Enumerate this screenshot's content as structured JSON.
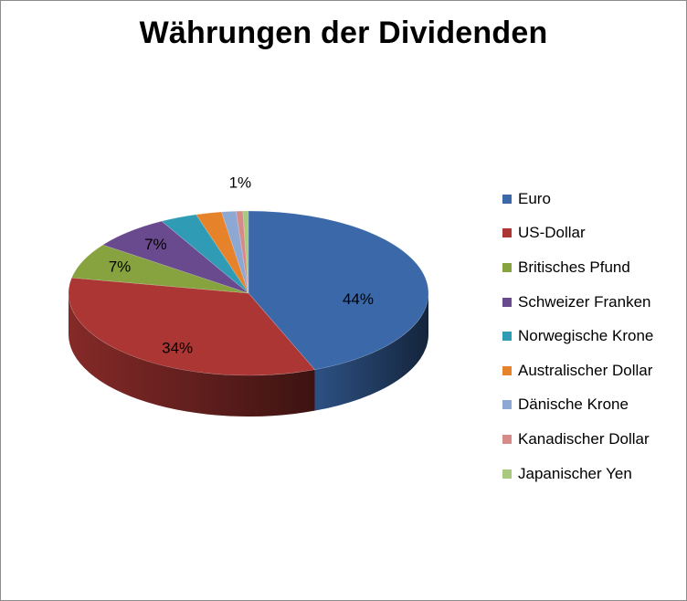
{
  "chart_data": {
    "type": "pie",
    "title": "Währungen der Dividenden",
    "legend_position": "right",
    "series": [
      {
        "name": "Euro",
        "value": 44,
        "label": "44%",
        "color": "#3a68a9"
      },
      {
        "name": "US-Dollar",
        "value": 34,
        "label": "34%",
        "color": "#ab3633"
      },
      {
        "name": "Britisches Pfund",
        "value": 7,
        "label": "7%",
        "color": "#86a33f"
      },
      {
        "name": "Schweizer Franken",
        "value": 7,
        "label": "7%",
        "color": "#6a4a8e"
      },
      {
        "name": "Norwegische Krone",
        "value": 3.3,
        "label": "",
        "color": "#2f9bb5"
      },
      {
        "name": "Australischer Dollar",
        "value": 2.3,
        "label": "",
        "color": "#e5822a"
      },
      {
        "name": "Dänische Krone",
        "value": 1.3,
        "label": "",
        "color": "#8ea8d4"
      },
      {
        "name": "Kanadischer Dollar",
        "value": 0.6,
        "label": "",
        "color": "#d78b89"
      },
      {
        "name": "Japanischer Yen",
        "value": 0.5,
        "label": "1%",
        "color": "#a8c97e"
      }
    ]
  }
}
